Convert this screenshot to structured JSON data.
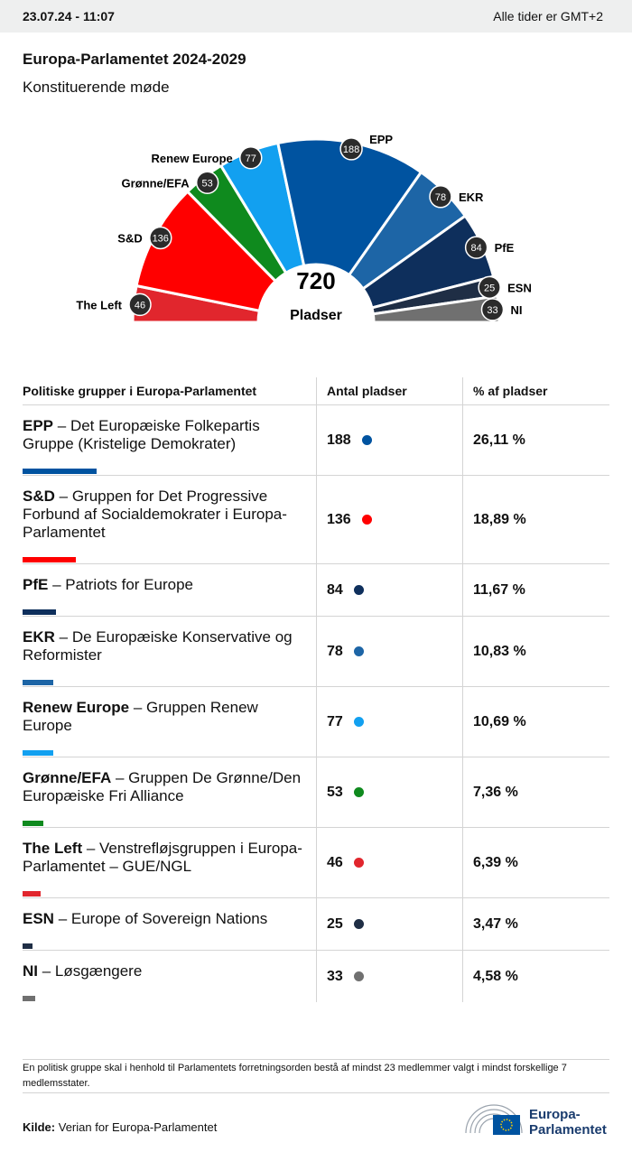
{
  "header": {
    "timestamp": "23.07.24 - 11:07",
    "timezone": "Alle tider er GMT+2"
  },
  "chart_data": {
    "type": "semi-donut",
    "title": "Europa-Parlamentet 2024-2029",
    "subtitle": "Konstituerende møde",
    "total": 720,
    "total_label": "Pladser",
    "categories": [
      "The Left",
      "S&D",
      "Grønne/EFA",
      "Renew Europe",
      "EPP",
      "EKR",
      "PfE",
      "ESN",
      "NI"
    ],
    "values": [
      46,
      136,
      53,
      77,
      188,
      78,
      84,
      25,
      33
    ],
    "colors": [
      "#e1262d",
      "#ff0000",
      "#0f8a1e",
      "#12a0f0",
      "#0053a0",
      "#1d65a6",
      "#0e2f5c",
      "#1f2e45",
      "#707070"
    ]
  },
  "table": {
    "columns": [
      "Politiske grupper i Europa-Parlamentet",
      "Antal pladser",
      "% af pladser"
    ],
    "rows": [
      {
        "abbr": "EPP",
        "description": "– Det Europæiske Folkepartis Gruppe (Kristelige Demokrater)",
        "seats": 188,
        "percent": {
          "value": 26.11,
          "label": "26,11 %"
        },
        "color": "#0053a0"
      },
      {
        "abbr": "S&D",
        "description": "– Gruppen for Det Progressive Forbund af Socialdemokrater i Europa-Parlamentet",
        "seats": 136,
        "percent": {
          "value": 18.89,
          "label": "18,89 %"
        },
        "color": "#ff0000"
      },
      {
        "abbr": "PfE",
        "description": "– Patriots for Europe",
        "seats": 84,
        "percent": {
          "value": 11.67,
          "label": "11,67 %"
        },
        "color": "#0e2f5c"
      },
      {
        "abbr": "EKR",
        "description": "– De Europæiske Konservative og Reformister",
        "seats": 78,
        "percent": {
          "value": 10.83,
          "label": "10,83 %"
        },
        "color": "#1d65a6"
      },
      {
        "abbr": "Renew Europe",
        "description": "– Gruppen Renew Europe",
        "seats": 77,
        "percent": {
          "value": 10.69,
          "label": "10,69 %"
        },
        "color": "#12a0f0"
      },
      {
        "abbr": "Grønne/EFA",
        "description": "– Gruppen De Grønne/Den Europæiske Fri Alliance",
        "seats": 53,
        "percent": {
          "value": 7.36,
          "label": "7,36 %"
        },
        "color": "#0f8a1e"
      },
      {
        "abbr": "The Left",
        "description": "– Venstrefløjsgruppen i Europa-Parlamentet – GUE/NGL",
        "seats": 46,
        "percent": {
          "value": 6.39,
          "label": "6,39 %"
        },
        "color": "#e1262d"
      },
      {
        "abbr": "ESN",
        "description": "– Europe of Sovereign Nations",
        "seats": 25,
        "percent": {
          "value": 3.47,
          "label": "3,47 %"
        },
        "color": "#1f2e45"
      },
      {
        "abbr": "NI",
        "description": "– Løsgængere",
        "seats": 33,
        "percent": {
          "value": 4.58,
          "label": "4,58 %"
        },
        "color": "#707070"
      }
    ]
  },
  "footnote": "En politisk gruppe skal i henhold til Parlamentets forretningsorden bestå af mindst 23 medlemmer valgt i mindst forskellige 7 medlemsstater.",
  "source": {
    "label": "Kilde:",
    "text": "Verian for Europa-Parlamentet"
  },
  "logo": [
    "Europa-",
    "Parlamentet"
  ]
}
